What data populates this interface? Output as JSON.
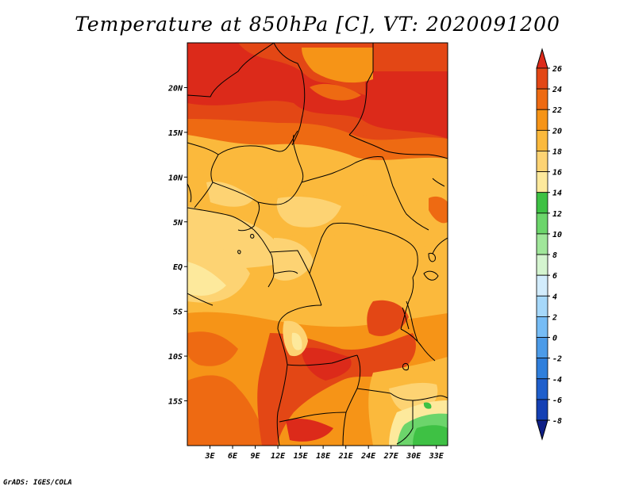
{
  "title": "Temperature at 850hPa [C], VT: 2020091200",
  "credit": "GrADS: IGES/COLA",
  "map": {
    "lon_range": [
      0,
      34.5
    ],
    "lat_range": [
      -20,
      25
    ],
    "lon_ticks": [
      "3E",
      "6E",
      "9E",
      "12E",
      "15E",
      "18E",
      "21E",
      "24E",
      "27E",
      "30E",
      "33E"
    ],
    "lat_ticks": [
      "20N",
      "15N",
      "10N",
      "5N",
      "EQ",
      "5S",
      "10S",
      "15S"
    ]
  },
  "colorbar": {
    "labels": [
      "26",
      "24",
      "22",
      "20",
      "18",
      "16",
      "14",
      "12",
      "10",
      "8",
      "6",
      "4",
      "2",
      "0",
      "-2",
      "-4",
      "-6",
      "-8"
    ],
    "colors": [
      "#dc2a1a",
      "#e34715",
      "#ee6a12",
      "#f69417",
      "#fbb93c",
      "#fdd373",
      "#fde99c",
      "#3ec144",
      "#6cd56b",
      "#a0e69a",
      "#d4f4cf",
      "#d2ecfc",
      "#a6d8fa",
      "#76bcf5",
      "#4c9be8",
      "#2f7fdc",
      "#1f5fcc",
      "#1440b4",
      "#0f1f86"
    ]
  }
}
